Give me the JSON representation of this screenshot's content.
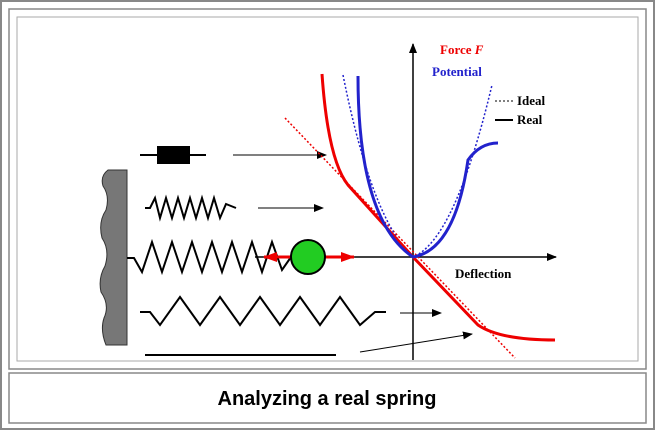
{
  "labels": {
    "force": "Force",
    "force_symbol": "F",
    "potential": "Potential",
    "ideal": "Ideal",
    "real": "Real",
    "deflection": "Deflection"
  },
  "caption": "Analyzing a real spring"
}
